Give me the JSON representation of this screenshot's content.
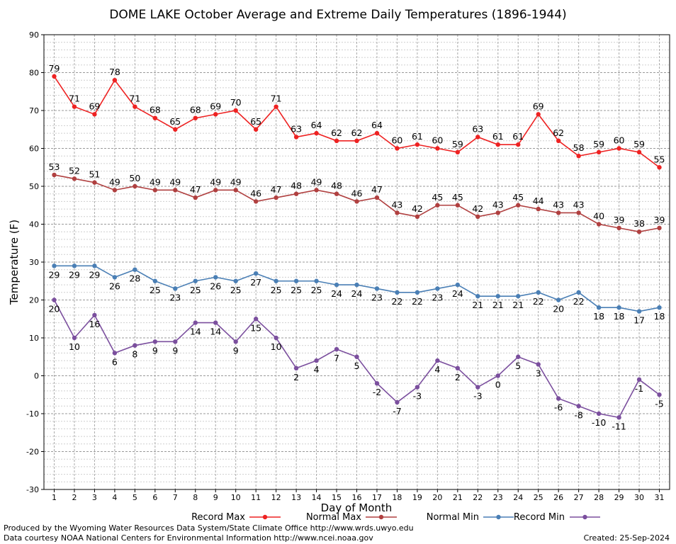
{
  "footer": {
    "produced_by": "Produced by the Wyoming Water Resources Data System/State Climate Office http://www.wrds.uwyo.edu",
    "courtesy": "Data courtesy NOAA National Centers for Environmental Information http://www.ncei.noaa.gov",
    "created": "Created: 25-Sep-2024"
  },
  "chart_data": {
    "type": "line",
    "title": "DOME LAKE October Average and Extreme Daily Temperatures (1896-1944)",
    "xlabel": "Day of Month",
    "ylabel": "Temperature (F)",
    "ylim": [
      -30,
      90
    ],
    "xlim": [
      1,
      31
    ],
    "yticks": [
      -30,
      -20,
      -10,
      0,
      10,
      20,
      30,
      40,
      50,
      60,
      70,
      80,
      90
    ],
    "grid": true,
    "legend_position": "bottom",
    "x": [
      1,
      2,
      3,
      4,
      5,
      6,
      7,
      8,
      9,
      10,
      11,
      12,
      13,
      14,
      15,
      16,
      17,
      18,
      19,
      20,
      21,
      22,
      23,
      24,
      25,
      26,
      27,
      28,
      29,
      30,
      31
    ],
    "series": [
      {
        "name": "Record Max",
        "color": "#ee2222",
        "label_pos": "above",
        "values": [
          79,
          71,
          69,
          78,
          71,
          68,
          65,
          68,
          69,
          70,
          65,
          71,
          63,
          64,
          62,
          62,
          64,
          60,
          61,
          60,
          59,
          63,
          61,
          61,
          69,
          62,
          58,
          59,
          60,
          59,
          55
        ]
      },
      {
        "name": "Normal Max",
        "color": "#b04040",
        "label_pos": "above",
        "values": [
          53,
          52,
          51,
          49,
          50,
          49,
          49,
          47,
          49,
          49,
          46,
          47,
          48,
          49,
          48,
          46,
          47,
          43,
          42,
          45,
          45,
          42,
          43,
          45,
          44,
          43,
          43,
          40,
          39,
          38,
          39
        ]
      },
      {
        "name": "Normal Min",
        "color": "#4a7fb5",
        "label_pos": "below",
        "values": [
          29,
          29,
          29,
          26,
          28,
          25,
          23,
          25,
          26,
          25,
          27,
          25,
          25,
          25,
          24,
          24,
          23,
          22,
          22,
          23,
          24,
          21,
          21,
          21,
          22,
          20,
          22,
          18,
          18,
          17,
          18
        ]
      },
      {
        "name": "Record Min",
        "color": "#7b4f9e",
        "label_pos": "below",
        "values": [
          20,
          10,
          16,
          6,
          8,
          9,
          9,
          14,
          14,
          9,
          15,
          10,
          2,
          4,
          7,
          5,
          -2,
          -7,
          -3,
          4,
          2,
          -3,
          0,
          5,
          3,
          -6,
          -8,
          -10,
          -11,
          -1,
          -5
        ]
      }
    ]
  }
}
